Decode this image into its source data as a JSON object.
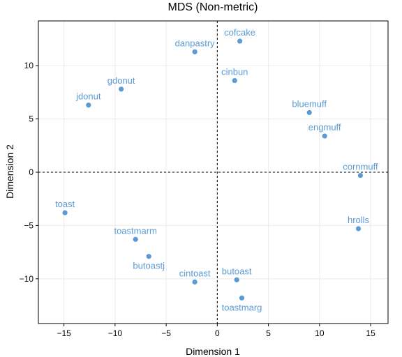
{
  "chart_data": {
    "type": "scatter",
    "title": "MDS (Non-metric)",
    "xlabel": "Dimension 1",
    "ylabel": "Dimension 2",
    "xlim": [
      -17.5,
      16.7
    ],
    "ylim": [
      -14.2,
      14.2
    ],
    "xticks": [
      -15,
      -10,
      -5,
      0,
      5,
      10,
      15
    ],
    "yticks": [
      -10,
      -5,
      0,
      5,
      10
    ],
    "xtick_labels": [
      "−15",
      "−10",
      "−5",
      "0",
      "5",
      "10",
      "15"
    ],
    "ytick_labels": [
      "−10",
      "−5",
      "0",
      "5",
      "10"
    ],
    "grid": true,
    "reference_lines": {
      "x": 0,
      "y": 0,
      "style": "dashed"
    },
    "point_color": "#5b9bd5",
    "points": [
      {
        "label": "cofcake",
        "x": 2.2,
        "y": 12.3,
        "label_pos": "above"
      },
      {
        "label": "danpastry",
        "x": -2.2,
        "y": 11.3,
        "label_pos": "above"
      },
      {
        "label": "cinbun",
        "x": 1.7,
        "y": 8.6,
        "label_pos": "above"
      },
      {
        "label": "gdonut",
        "x": -9.4,
        "y": 7.8,
        "label_pos": "above"
      },
      {
        "label": "jdonut",
        "x": -12.6,
        "y": 6.3,
        "label_pos": "above"
      },
      {
        "label": "bluemuff",
        "x": 9.0,
        "y": 5.6,
        "label_pos": "above"
      },
      {
        "label": "engmuff",
        "x": 10.5,
        "y": 3.4,
        "label_pos": "above"
      },
      {
        "label": "cornmuff",
        "x": 14.0,
        "y": -0.3,
        "label_pos": "above"
      },
      {
        "label": "toast",
        "x": -14.9,
        "y": -3.8,
        "label_pos": "above"
      },
      {
        "label": "hrolls",
        "x": 13.8,
        "y": -5.3,
        "label_pos": "above"
      },
      {
        "label": "toastmarm",
        "x": -8.0,
        "y": -6.3,
        "label_pos": "above"
      },
      {
        "label": "butoastj",
        "x": -6.7,
        "y": -7.9,
        "label_pos": "below"
      },
      {
        "label": "cintoast",
        "x": -2.2,
        "y": -10.3,
        "label_pos": "above"
      },
      {
        "label": "butoast",
        "x": 1.9,
        "y": -10.1,
        "label_pos": "above"
      },
      {
        "label": "toastmarg",
        "x": 2.4,
        "y": -11.8,
        "label_pos": "below"
      }
    ]
  }
}
